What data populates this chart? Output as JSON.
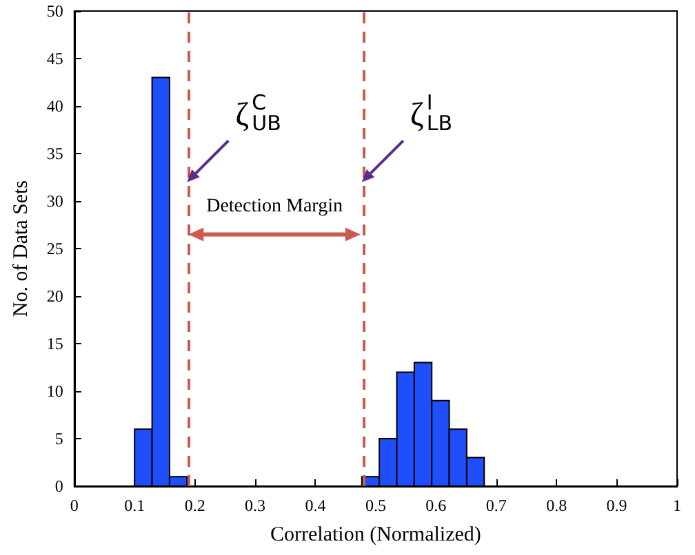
{
  "chart_data": {
    "type": "histogram",
    "xlabel": "Correlation (Normalized)",
    "ylabel": "No. of Data Sets",
    "bins": [
      0.1,
      0.129,
      0.158,
      0.187,
      0.216,
      0.245,
      0.274,
      0.303,
      0.332,
      0.361,
      0.39,
      0.419,
      0.448,
      0.477,
      0.506,
      0.535,
      0.564,
      0.593,
      0.622,
      0.651,
      0.68
    ],
    "values": [
      6,
      43,
      1,
      0,
      0,
      0,
      0,
      0,
      0,
      0,
      0,
      0,
      0,
      1,
      5,
      12,
      13,
      9,
      6,
      3
    ],
    "color": "#1f4ffb",
    "xlim": [
      0,
      1
    ],
    "xticks": [
      0,
      0.1,
      0.2,
      0.3,
      0.4,
      0.5,
      0.6,
      0.7,
      0.8,
      0.9,
      1
    ],
    "ylim": [
      0,
      50
    ],
    "yticks": [
      0,
      5,
      10,
      15,
      20,
      25,
      30,
      35,
      40,
      45,
      50
    ],
    "grid": false,
    "ref_lines": [
      {
        "axis": "x",
        "value": 0.187,
        "color": "#cd5a4e",
        "line_style": "dashed"
      },
      {
        "axis": "x",
        "value": 0.477,
        "color": "#cd5a4e",
        "line_style": "dashed"
      }
    ],
    "annotations": [
      {
        "text": "ζ$^{C}$$_{UB}$",
        "x": 0.187,
        "y": 32
      },
      {
        "text": "ζ$^{I}$$_{LB}$",
        "x": 0.477,
        "y": 32
      },
      "Detection Margin"
    ]
  }
}
